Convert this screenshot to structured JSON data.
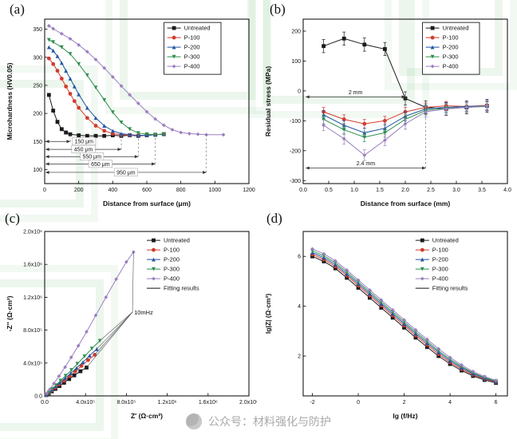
{
  "panels": [
    {
      "label": "(a)"
    },
    {
      "label": "(b)"
    },
    {
      "label": "(c)"
    },
    {
      "label": "(d)"
    }
  ],
  "footer": {
    "watermark_text": "公众号：材料强化与防护"
  },
  "chart_data": [
    {
      "id": "a",
      "type": "line",
      "xlabel": "Distance from surface (μm)",
      "ylabel": "Microhardness (HV0.05)",
      "xlim": [
        0,
        1200
      ],
      "ylim": [
        75,
        368
      ],
      "xticks": [
        0,
        200,
        400,
        600,
        800,
        1000,
        1200
      ],
      "xticklabels": [
        "0",
        "200",
        "400",
        "600",
        "800",
        "1000",
        "1200"
      ],
      "yticks": [
        100,
        150,
        200,
        250,
        300,
        350
      ],
      "yticklabels": [
        "100",
        "150",
        "200",
        "250",
        "300",
        "350"
      ],
      "legend": {
        "fx": 0.6,
        "fy": 0.02,
        "box": true
      },
      "series": [
        {
          "name": "Untreated",
          "color": "#1a1a1a",
          "marker": "square",
          "line": true,
          "x": [
            25,
            50,
            75,
            100,
            125,
            150,
            200,
            250,
            300,
            350,
            400,
            450,
            500,
            550,
            600,
            650,
            700
          ],
          "y": [
            233,
            205,
            185,
            172,
            166,
            163,
            161,
            160,
            160,
            160,
            161,
            160,
            161,
            160,
            161,
            162,
            163
          ]
        },
        {
          "name": "P-100",
          "color": "#d23b2e",
          "marker": "circle",
          "line": true,
          "x": [
            25,
            50,
            75,
            100,
            125,
            150,
            175,
            200,
            250,
            300,
            350,
            400,
            450,
            500,
            550,
            600,
            650,
            700
          ],
          "y": [
            298,
            288,
            276,
            262,
            248,
            235,
            222,
            210,
            192,
            178,
            169,
            164,
            162,
            161,
            161,
            161,
            162,
            163
          ]
        },
        {
          "name": "P-200",
          "color": "#2155a3",
          "marker": "triangle-up",
          "line": true,
          "x": [
            25,
            50,
            75,
            100,
            125,
            150,
            175,
            200,
            250,
            300,
            350,
            400,
            450,
            500,
            550,
            600,
            650,
            700
          ],
          "y": [
            318,
            312,
            302,
            290,
            276,
            262,
            248,
            234,
            210,
            192,
            178,
            169,
            164,
            162,
            161,
            161,
            162,
            163
          ]
        },
        {
          "name": "P-300",
          "color": "#2f8f4e",
          "marker": "triangle-down",
          "line": true,
          "x": [
            25,
            50,
            100,
            150,
            200,
            250,
            300,
            350,
            400,
            450,
            500,
            550,
            600,
            650,
            700
          ],
          "y": [
            331,
            327,
            318,
            306,
            288,
            268,
            246,
            224,
            202,
            184,
            172,
            165,
            163,
            162,
            163
          ]
        },
        {
          "name": "P-400",
          "color": "#9c7fc0",
          "marker": "diamond",
          "line": true,
          "x": [
            25,
            50,
            100,
            150,
            200,
            250,
            300,
            350,
            400,
            450,
            500,
            550,
            600,
            650,
            700,
            750,
            800,
            850,
            900,
            950,
            1050
          ],
          "y": [
            356,
            351,
            342,
            333,
            322,
            310,
            296,
            281,
            265,
            249,
            233,
            218,
            203,
            190,
            179,
            171,
            166,
            164,
            163,
            162,
            162
          ]
        }
      ],
      "annotations": [
        {
          "type": "span",
          "x0": 5,
          "x1": 150,
          "y": 150,
          "label": "150 μm",
          "labelpos": "right"
        },
        {
          "type": "span",
          "x0": 5,
          "x1": 450,
          "y": 136,
          "label": "450 μm",
          "labelpos": "center"
        },
        {
          "type": "span",
          "x0": 5,
          "x1": 550,
          "y": 123,
          "label": "550 μm",
          "labelpos": "center"
        },
        {
          "type": "span",
          "x0": 5,
          "x1": 650,
          "y": 110,
          "label": "650 μm",
          "labelpos": "center"
        },
        {
          "type": "span",
          "x0": 5,
          "x1": 950,
          "y": 95,
          "label": "950 μm",
          "labelpos": "center"
        },
        {
          "type": "vline",
          "x": 150,
          "y0": 150,
          "y1": 166
        },
        {
          "type": "vline",
          "x": 450,
          "y0": 136,
          "y1": 166
        },
        {
          "type": "vline",
          "x": 550,
          "y0": 123,
          "y1": 166
        },
        {
          "type": "vline",
          "x": 650,
          "y0": 110,
          "y1": 166
        },
        {
          "type": "vline",
          "x": 950,
          "y0": 95,
          "y1": 165
        }
      ]
    },
    {
      "id": "b",
      "type": "line",
      "xlabel": "Distance from surface (mm)",
      "ylabel": "Residual stress (MPa)",
      "xlim": [
        0,
        4.0
      ],
      "ylim": [
        -310,
        240
      ],
      "xticks": [
        0,
        0.5,
        1.0,
        1.5,
        2.0,
        2.5,
        3.0,
        3.5,
        4.0
      ],
      "xticklabels": [
        "0.0",
        "0.5",
        "1.0",
        "1.5",
        "2.0",
        "2.5",
        "3.0",
        "3.5",
        "4.0"
      ],
      "yticks": [
        -300,
        -200,
        -100,
        0,
        100,
        200
      ],
      "yticklabels": [
        "-300",
        "-200",
        "-100",
        "0",
        "100",
        "200"
      ],
      "legend": {
        "fx": 0.6,
        "fy": 0.02,
        "box": true
      },
      "series": [
        {
          "name": "Untreated",
          "color": "#1a1a1a",
          "marker": "square",
          "line": true,
          "yerr": 22,
          "x": [
            0.4,
            0.8,
            1.2,
            1.6,
            2.0,
            2.4,
            2.8,
            3.2,
            3.6
          ],
          "y": [
            150,
            175,
            155,
            140,
            -25,
            -55,
            -60,
            -55,
            -50
          ]
        },
        {
          "name": "P-100",
          "color": "#d23b2e",
          "marker": "circle",
          "line": true,
          "yerr": 15,
          "x": [
            0.4,
            0.8,
            1.2,
            1.6,
            2.0,
            2.4,
            2.8,
            3.2,
            3.6
          ],
          "y": [
            -70,
            -95,
            -110,
            -100,
            -70,
            -55,
            -50,
            -52,
            -48
          ]
        },
        {
          "name": "P-200",
          "color": "#2155a3",
          "marker": "triangle-up",
          "line": true,
          "yerr": 15,
          "x": [
            0.4,
            0.8,
            1.2,
            1.6,
            2.0,
            2.4,
            2.8,
            3.2,
            3.6
          ],
          "y": [
            -80,
            -115,
            -140,
            -125,
            -85,
            -60,
            -55,
            -52,
            -50
          ]
        },
        {
          "name": "P-300",
          "color": "#2f8f4e",
          "marker": "triangle-down",
          "line": true,
          "yerr": 15,
          "x": [
            0.4,
            0.8,
            1.2,
            1.6,
            2.0,
            2.4,
            2.8,
            3.2,
            3.6
          ],
          "y": [
            -95,
            -130,
            -155,
            -140,
            -95,
            -65,
            -58,
            -55,
            -52
          ]
        },
        {
          "name": "P-400",
          "color": "#9c7fc0",
          "marker": "diamond",
          "line": true,
          "yerr": 18,
          "x": [
            0.4,
            0.8,
            1.2,
            1.6,
            2.0,
            2.4,
            2.8,
            3.2,
            3.6
          ],
          "y": [
            -115,
            -160,
            -215,
            -165,
            -110,
            -70,
            -60,
            -55,
            -50
          ]
        }
      ],
      "annotations": [
        {
          "type": "span",
          "x0": 0.05,
          "x1": 2.0,
          "y": -20,
          "label": "2 mm",
          "labelpos": "above"
        },
        {
          "type": "span",
          "x0": 0.05,
          "x1": 2.4,
          "y": -258,
          "label": "2.4 mm",
          "labelpos": "above"
        },
        {
          "type": "vline",
          "x": 2.0,
          "y0": -20,
          "y1": -130
        },
        {
          "type": "vline",
          "x": 2.4,
          "y0": -258,
          "y1": -75
        }
      ]
    },
    {
      "id": "c",
      "type": "scatter",
      "xlabel": "Z′ (Ω·cm²)",
      "ylabel": "-Z″ (Ω·cm²)",
      "xlim": [
        0,
        2000000
      ],
      "ylim": [
        0,
        2000000
      ],
      "xticks": [
        0,
        400000,
        800000,
        1200000,
        1600000,
        2000000
      ],
      "xticklabels": [
        "0.0",
        "4.0x10⁵",
        "8.0x10⁵",
        "1.2x10⁶",
        "1.6x10⁶",
        "2.0x10⁶"
      ],
      "yticks": [
        0,
        400000,
        800000,
        1200000,
        1600000,
        2000000
      ],
      "yticklabels": [
        "0.0",
        "4.0x10⁵",
        "8.0x10⁵",
        "1.2x10⁶",
        "1.6x10⁶",
        "2.0x10⁶"
      ],
      "legend": {
        "fx": 0.5,
        "fy": 0.02,
        "box": false
      },
      "series": [
        {
          "name": "Untreated",
          "color": "#1a1a1a",
          "marker": "square",
          "line": true,
          "x": [
            15000,
            40000,
            70000,
            105000,
            145000,
            190000,
            240000,
            290000,
            350000,
            410000
          ],
          "y": [
            10000,
            30000,
            55000,
            85000,
            120000,
            160000,
            205000,
            250000,
            300000,
            345000
          ]
        },
        {
          "name": "P-100",
          "color": "#d23b2e",
          "marker": "circle",
          "line": true,
          "x": [
            15000,
            40000,
            70000,
            105000,
            145000,
            190000,
            245000,
            300000,
            360000,
            425000,
            490000
          ],
          "y": [
            12000,
            35000,
            65000,
            100000,
            140000,
            185000,
            240000,
            300000,
            365000,
            435000,
            500000
          ]
        },
        {
          "name": "P-200",
          "color": "#2155a3",
          "marker": "triangle-up",
          "line": true,
          "x": [
            15000,
            42000,
            72000,
            108000,
            150000,
            200000,
            255000,
            312000,
            375000,
            440000,
            510000
          ],
          "y": [
            15000,
            40000,
            75000,
            115000,
            160000,
            215000,
            275000,
            340000,
            410000,
            490000,
            570000
          ]
        },
        {
          "name": "P-300",
          "color": "#2f8f4e",
          "marker": "triangle-down",
          "line": true,
          "x": [
            15000,
            42000,
            75000,
            112000,
            155000,
            205000,
            262000,
            320000,
            390000,
            462000,
            540000
          ],
          "y": [
            18000,
            45000,
            85000,
            130000,
            185000,
            245000,
            315000,
            390000,
            480000,
            575000,
            670000
          ]
        },
        {
          "name": "P-400",
          "color": "#9c7fc0",
          "marker": "diamond",
          "line": true,
          "x": [
            20000,
            50000,
            90000,
            140000,
            200000,
            260000,
            330000,
            410000,
            500000,
            600000,
            700000,
            800000,
            870000
          ],
          "y": [
            30000,
            80000,
            150000,
            240000,
            350000,
            470000,
            610000,
            780000,
            980000,
            1200000,
            1420000,
            1630000,
            1750000
          ]
        },
        {
          "name": "Fitting results",
          "color": "#111111",
          "marker": "none",
          "line": true,
          "x": [],
          "y": []
        }
      ],
      "annotations": [
        {
          "type": "fan",
          "x": 860000,
          "y": 1020000,
          "label": "10mHz"
        }
      ]
    },
    {
      "id": "d",
      "type": "line",
      "xlabel": "lg (f/Hz)",
      "ylabel": "lg|Z| (Ω·cm²)",
      "xlim": [
        -2.4,
        6.5
      ],
      "ylim": [
        0.4,
        7.0
      ],
      "xticks": [
        -2,
        0,
        2,
        4,
        6
      ],
      "xticklabels": [
        "-2",
        "0",
        "2",
        "4",
        "6"
      ],
      "yticks": [
        2,
        4,
        6
      ],
      "yticklabels": [
        "2",
        "4",
        "6"
      ],
      "legend": {
        "fx": 0.55,
        "fy": 0.02,
        "box": false
      },
      "series": [
        {
          "name": "Untreated",
          "color": "#1a1a1a",
          "marker": "square",
          "line": true,
          "x": [
            -2,
            -1.5,
            -1,
            -0.5,
            0,
            0.5,
            1,
            1.5,
            2,
            2.5,
            3,
            3.5,
            4,
            4.5,
            5,
            5.5,
            6
          ],
          "y": [
            6.0,
            5.8,
            5.52,
            5.14,
            4.74,
            4.34,
            3.94,
            3.54,
            3.14,
            2.74,
            2.36,
            2.0,
            1.68,
            1.42,
            1.2,
            1.04,
            0.92
          ]
        },
        {
          "name": "P-100",
          "color": "#d23b2e",
          "marker": "circle",
          "line": true,
          "x": [
            -2,
            -1.5,
            -1,
            -0.5,
            0,
            0.5,
            1,
            1.5,
            2,
            2.5,
            3,
            3.5,
            4,
            4.5,
            5,
            5.5,
            6
          ],
          "y": [
            6.08,
            5.88,
            5.6,
            5.23,
            4.83,
            4.43,
            4.03,
            3.63,
            3.23,
            2.83,
            2.45,
            2.08,
            1.75,
            1.48,
            1.25,
            1.08,
            0.95
          ]
        },
        {
          "name": "P-200",
          "color": "#2155a3",
          "marker": "triangle-up",
          "line": true,
          "x": [
            -2,
            -1.5,
            -1,
            -0.5,
            0,
            0.5,
            1,
            1.5,
            2,
            2.5,
            3,
            3.5,
            4,
            4.5,
            5,
            5.5,
            6
          ],
          "y": [
            6.15,
            5.95,
            5.67,
            5.3,
            4.9,
            4.5,
            4.1,
            3.7,
            3.3,
            2.9,
            2.52,
            2.15,
            1.81,
            1.53,
            1.29,
            1.11,
            0.97
          ]
        },
        {
          "name": "P-300",
          "color": "#2f8f4e",
          "marker": "triangle-down",
          "line": true,
          "x": [
            -2,
            -1.5,
            -1,
            -0.5,
            0,
            0.5,
            1,
            1.5,
            2,
            2.5,
            3,
            3.5,
            4,
            4.5,
            5,
            5.5,
            6
          ],
          "y": [
            6.22,
            6.02,
            5.74,
            5.37,
            4.97,
            4.57,
            4.17,
            3.77,
            3.37,
            2.97,
            2.59,
            2.21,
            1.87,
            1.58,
            1.33,
            1.14,
            0.99
          ]
        },
        {
          "name": "P-400",
          "color": "#9c7fc0",
          "marker": "diamond",
          "line": true,
          "x": [
            -2,
            -1.5,
            -1,
            -0.5,
            0,
            0.5,
            1,
            1.5,
            2,
            2.5,
            3,
            3.5,
            4,
            4.5,
            5,
            5.5,
            6
          ],
          "y": [
            6.3,
            6.1,
            5.82,
            5.45,
            5.05,
            4.65,
            4.25,
            3.85,
            3.45,
            3.05,
            2.67,
            2.29,
            1.94,
            1.64,
            1.38,
            1.18,
            1.02
          ]
        },
        {
          "name": "Fitting results",
          "color": "#111111",
          "marker": "none",
          "line": true,
          "x": [],
          "y": []
        }
      ],
      "annotations": []
    }
  ]
}
